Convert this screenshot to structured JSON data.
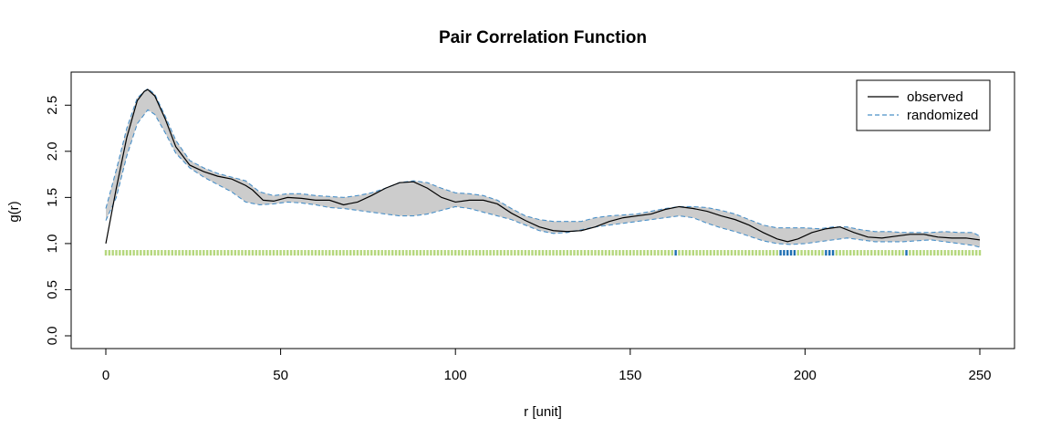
{
  "chart_data": {
    "type": "line",
    "title": "Pair Correlation Function",
    "xlabel": "r [unit]",
    "ylabel": "g(r)",
    "xlim": [
      0,
      250
    ],
    "ylim": [
      0,
      2.75
    ],
    "x_ticks": [
      "0",
      "50",
      "100",
      "150",
      "200",
      "250"
    ],
    "y_ticks": [
      "0.0",
      "0.5",
      "1.0",
      "1.5",
      "2.0",
      "2.5"
    ],
    "grid": false,
    "legend_position": "top-right",
    "series": [
      {
        "name": "observed",
        "style": "solid",
        "color": "#000000",
        "points": [
          [
            0,
            1.0
          ],
          [
            3,
            1.6
          ],
          [
            6,
            2.15
          ],
          [
            9,
            2.55
          ],
          [
            11,
            2.65
          ],
          [
            12,
            2.67
          ],
          [
            14,
            2.6
          ],
          [
            17,
            2.35
          ],
          [
            20,
            2.05
          ],
          [
            24,
            1.85
          ],
          [
            28,
            1.78
          ],
          [
            32,
            1.73
          ],
          [
            36,
            1.7
          ],
          [
            40,
            1.63
          ],
          [
            42,
            1.58
          ],
          [
            45,
            1.47
          ],
          [
            48,
            1.46
          ],
          [
            52,
            1.5
          ],
          [
            56,
            1.49
          ],
          [
            60,
            1.47
          ],
          [
            64,
            1.47
          ],
          [
            68,
            1.42
          ],
          [
            72,
            1.45
          ],
          [
            76,
            1.52
          ],
          [
            80,
            1.6
          ],
          [
            84,
            1.66
          ],
          [
            88,
            1.67
          ],
          [
            92,
            1.6
          ],
          [
            96,
            1.5
          ],
          [
            100,
            1.45
          ],
          [
            104,
            1.47
          ],
          [
            108,
            1.47
          ],
          [
            112,
            1.43
          ],
          [
            116,
            1.33
          ],
          [
            120,
            1.25
          ],
          [
            124,
            1.18
          ],
          [
            128,
            1.14
          ],
          [
            132,
            1.13
          ],
          [
            136,
            1.14
          ],
          [
            140,
            1.18
          ],
          [
            144,
            1.24
          ],
          [
            148,
            1.28
          ],
          [
            152,
            1.3
          ],
          [
            156,
            1.32
          ],
          [
            160,
            1.37
          ],
          [
            164,
            1.4
          ],
          [
            168,
            1.38
          ],
          [
            172,
            1.35
          ],
          [
            176,
            1.3
          ],
          [
            180,
            1.26
          ],
          [
            184,
            1.2
          ],
          [
            188,
            1.12
          ],
          [
            192,
            1.05
          ],
          [
            195,
            1.02
          ],
          [
            198,
            1.05
          ],
          [
            202,
            1.12
          ],
          [
            206,
            1.16
          ],
          [
            210,
            1.18
          ],
          [
            214,
            1.12
          ],
          [
            218,
            1.07
          ],
          [
            222,
            1.06
          ],
          [
            226,
            1.08
          ],
          [
            230,
            1.1
          ],
          [
            234,
            1.1
          ],
          [
            238,
            1.07
          ],
          [
            242,
            1.06
          ],
          [
            246,
            1.06
          ],
          [
            250,
            1.04
          ]
        ]
      },
      {
        "name": "randomized",
        "style": "dashed",
        "color": "#4a90c8",
        "band_fill": "#cccccc",
        "upper": [
          [
            0,
            1.38
          ],
          [
            3,
            1.8
          ],
          [
            6,
            2.25
          ],
          [
            9,
            2.58
          ],
          [
            12,
            2.68
          ],
          [
            14,
            2.62
          ],
          [
            17,
            2.38
          ],
          [
            20,
            2.12
          ],
          [
            24,
            1.9
          ],
          [
            28,
            1.82
          ],
          [
            32,
            1.76
          ],
          [
            36,
            1.72
          ],
          [
            40,
            1.68
          ],
          [
            44,
            1.56
          ],
          [
            48,
            1.52
          ],
          [
            52,
            1.54
          ],
          [
            56,
            1.54
          ],
          [
            60,
            1.52
          ],
          [
            64,
            1.51
          ],
          [
            68,
            1.5
          ],
          [
            72,
            1.52
          ],
          [
            76,
            1.55
          ],
          [
            80,
            1.6
          ],
          [
            84,
            1.66
          ],
          [
            88,
            1.68
          ],
          [
            92,
            1.66
          ],
          [
            96,
            1.6
          ],
          [
            100,
            1.55
          ],
          [
            104,
            1.54
          ],
          [
            108,
            1.52
          ],
          [
            112,
            1.47
          ],
          [
            116,
            1.38
          ],
          [
            120,
            1.3
          ],
          [
            124,
            1.26
          ],
          [
            128,
            1.24
          ],
          [
            132,
            1.24
          ],
          [
            136,
            1.24
          ],
          [
            140,
            1.28
          ],
          [
            144,
            1.3
          ],
          [
            148,
            1.31
          ],
          [
            152,
            1.32
          ],
          [
            156,
            1.35
          ],
          [
            160,
            1.38
          ],
          [
            164,
            1.4
          ],
          [
            168,
            1.4
          ],
          [
            172,
            1.39
          ],
          [
            176,
            1.36
          ],
          [
            180,
            1.32
          ],
          [
            184,
            1.26
          ],
          [
            188,
            1.2
          ],
          [
            192,
            1.17
          ],
          [
            196,
            1.17
          ],
          [
            200,
            1.17
          ],
          [
            204,
            1.16
          ],
          [
            208,
            1.18
          ],
          [
            212,
            1.18
          ],
          [
            216,
            1.15
          ],
          [
            220,
            1.13
          ],
          [
            224,
            1.13
          ],
          [
            228,
            1.12
          ],
          [
            232,
            1.12
          ],
          [
            236,
            1.12
          ],
          [
            240,
            1.13
          ],
          [
            244,
            1.12
          ],
          [
            248,
            1.12
          ],
          [
            250,
            1.08
          ]
        ],
        "lower": [
          [
            0,
            1.25
          ],
          [
            3,
            1.5
          ],
          [
            6,
            1.95
          ],
          [
            9,
            2.3
          ],
          [
            12,
            2.45
          ],
          [
            14,
            2.4
          ],
          [
            17,
            2.2
          ],
          [
            20,
            1.98
          ],
          [
            24,
            1.82
          ],
          [
            28,
            1.72
          ],
          [
            32,
            1.64
          ],
          [
            36,
            1.56
          ],
          [
            40,
            1.45
          ],
          [
            44,
            1.42
          ],
          [
            48,
            1.43
          ],
          [
            52,
            1.45
          ],
          [
            56,
            1.44
          ],
          [
            60,
            1.42
          ],
          [
            64,
            1.39
          ],
          [
            68,
            1.38
          ],
          [
            72,
            1.36
          ],
          [
            76,
            1.34
          ],
          [
            80,
            1.32
          ],
          [
            84,
            1.3
          ],
          [
            88,
            1.3
          ],
          [
            92,
            1.32
          ],
          [
            96,
            1.36
          ],
          [
            100,
            1.4
          ],
          [
            104,
            1.38
          ],
          [
            108,
            1.34
          ],
          [
            112,
            1.3
          ],
          [
            116,
            1.26
          ],
          [
            120,
            1.2
          ],
          [
            124,
            1.14
          ],
          [
            128,
            1.11
          ],
          [
            132,
            1.12
          ],
          [
            136,
            1.15
          ],
          [
            140,
            1.18
          ],
          [
            144,
            1.2
          ],
          [
            148,
            1.22
          ],
          [
            152,
            1.24
          ],
          [
            156,
            1.26
          ],
          [
            160,
            1.28
          ],
          [
            164,
            1.3
          ],
          [
            168,
            1.28
          ],
          [
            172,
            1.22
          ],
          [
            176,
            1.17
          ],
          [
            180,
            1.13
          ],
          [
            184,
            1.08
          ],
          [
            188,
            1.03
          ],
          [
            192,
            1.0
          ],
          [
            196,
            0.99
          ],
          [
            200,
            1.0
          ],
          [
            204,
            1.02
          ],
          [
            208,
            1.04
          ],
          [
            212,
            1.06
          ],
          [
            216,
            1.04
          ],
          [
            220,
            1.02
          ],
          [
            224,
            1.02
          ],
          [
            228,
            1.02
          ],
          [
            232,
            1.03
          ],
          [
            236,
            1.04
          ],
          [
            240,
            1.02
          ],
          [
            244,
            1.0
          ],
          [
            248,
            0.98
          ],
          [
            250,
            0.96
          ]
        ]
      }
    ],
    "test_strip": {
      "y": 0.9,
      "colors": {
        "default": "#b5d77d",
        "significant": "#1f6fb2"
      },
      "significant_x": [
        163,
        193,
        194,
        195,
        196,
        197,
        206,
        207,
        208,
        229
      ]
    }
  }
}
